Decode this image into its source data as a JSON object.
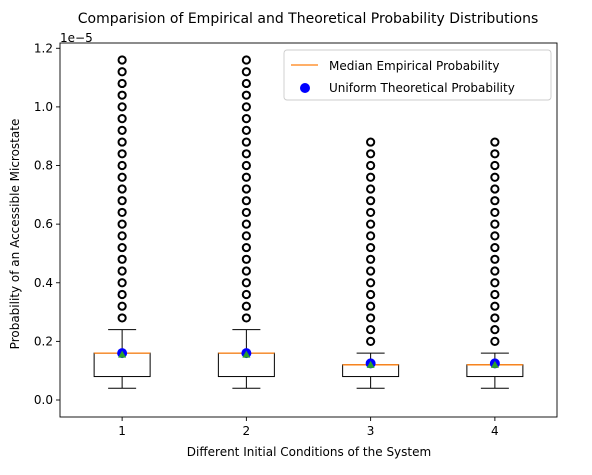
{
  "chart_data": {
    "type": "box",
    "title": "Comparision of Empirical and Theoretical Probability Distributions",
    "xlabel": "Different Initial Conditions of the System",
    "ylabel": "Probability of an Accessible Microstate",
    "y_offset_label": "1e−5",
    "y_multiplier": 1e-05,
    "ylim": [
      -0.058,
      1.218
    ],
    "xlim": [
      0.5,
      4.5
    ],
    "y_ticks": [
      0.0,
      0.2,
      0.4,
      0.6,
      0.8,
      1.0,
      1.2
    ],
    "y_tick_labels": [
      "0.0",
      "0.2",
      "0.4",
      "0.6",
      "0.8",
      "1.0",
      "1.2"
    ],
    "categories": [
      "1",
      "2",
      "3",
      "4"
    ],
    "boxes": [
      {
        "q1": 0.08,
        "median": 0.16,
        "q3": 0.16,
        "whisker_low": 0.04,
        "whisker_high": 0.24,
        "mean": 0.155,
        "outliers": [
          0.28,
          0.32,
          0.36,
          0.4,
          0.44,
          0.48,
          0.52,
          0.56,
          0.6,
          0.64,
          0.68,
          0.72,
          0.76,
          0.8,
          0.84,
          0.88,
          0.92,
          0.96,
          1.0,
          1.04,
          1.08,
          1.12,
          1.16
        ]
      },
      {
        "q1": 0.08,
        "median": 0.16,
        "q3": 0.16,
        "whisker_low": 0.04,
        "whisker_high": 0.24,
        "mean": 0.155,
        "outliers": [
          0.28,
          0.32,
          0.36,
          0.4,
          0.44,
          0.48,
          0.52,
          0.56,
          0.6,
          0.64,
          0.68,
          0.72,
          0.76,
          0.8,
          0.84,
          0.88,
          0.92,
          0.96,
          1.0,
          1.04,
          1.08,
          1.12,
          1.16
        ]
      },
      {
        "q1": 0.08,
        "median": 0.12,
        "q3": 0.12,
        "whisker_low": 0.04,
        "whisker_high": 0.16,
        "mean": 0.12,
        "outliers": [
          0.2,
          0.24,
          0.28,
          0.32,
          0.36,
          0.4,
          0.44,
          0.48,
          0.52,
          0.56,
          0.6,
          0.64,
          0.68,
          0.72,
          0.76,
          0.8,
          0.84,
          0.88
        ]
      },
      {
        "q1": 0.08,
        "median": 0.12,
        "q3": 0.12,
        "whisker_low": 0.04,
        "whisker_high": 0.16,
        "mean": 0.12,
        "outliers": [
          0.2,
          0.24,
          0.28,
          0.32,
          0.36,
          0.4,
          0.44,
          0.48,
          0.52,
          0.56,
          0.6,
          0.64,
          0.68,
          0.72,
          0.76,
          0.8,
          0.84,
          0.88
        ]
      }
    ],
    "theoretical": {
      "name": "Uniform Theoretical Probability",
      "values": [
        0.16,
        0.16,
        0.125,
        0.125
      ]
    },
    "legend": {
      "placement": "top-right",
      "entries": [
        "Median Empirical Probability",
        "Uniform Theoretical Probability"
      ]
    },
    "colors": {
      "median": "#ff7f0e",
      "theoretical": "#0000ff",
      "mean": "#2ca02c",
      "box": "#000000",
      "outlier_edge": "#000000"
    },
    "grid": false
  }
}
